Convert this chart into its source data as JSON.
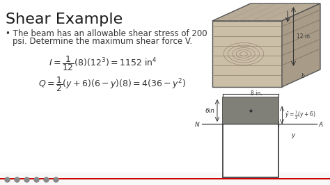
{
  "bg_color": "#ffffff",
  "title": "Shear Example",
  "title_fontsize": 16,
  "title_color": "#1a1a1a",
  "bullet_text_line1": "The beam has an allowable shear stress of 200",
  "bullet_text_line2": "psi. Determine the maximum shear force V.",
  "bullet_fontsize": 8.5,
  "text_color": "#333333",
  "wood_block": {
    "front_color": "#c8baa0",
    "top_color": "#b8aa90",
    "right_color": "#a89a80",
    "grain_color": "#908070",
    "label_12in": "12 in.",
    "label_8in": "8 in.",
    "label_b": "b"
  },
  "diagram": {
    "shaded_color": "#888880",
    "label_6in": "6in",
    "label_N": "N",
    "label_A": "A",
    "label_y": "y",
    "annotation": "ȳ=½(y+6)"
  }
}
